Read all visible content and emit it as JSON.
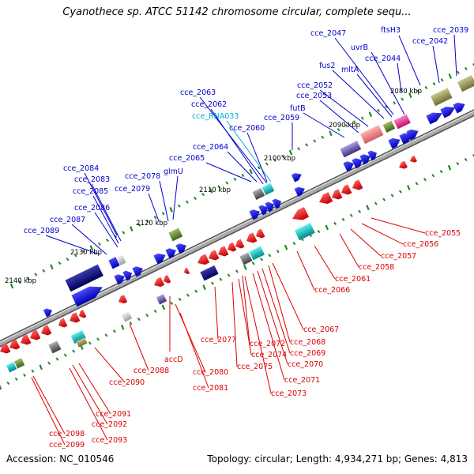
{
  "title": "Cyanothece sp. ATCC 51142 chromosome circular, complete sequ...",
  "footer": {
    "accession": "Accession: NC_010546",
    "summary": "Topology: circular; Length: 4,934,271 bp; Genes: 4,813"
  },
  "colors": {
    "forward_label": "#0000cc",
    "reverse_label": "#dd0000",
    "rna_label": "#00aadd",
    "forward_gene": "#0000ee",
    "reverse_gene": "#ee0000",
    "backbone": "#909090",
    "tick": "#228822"
  },
  "scale_labels": [
    {
      "text": "2080 kbp"
    },
    {
      "text": "2090 kbp"
    },
    {
      "text": "2100 kbp"
    },
    {
      "text": "2110 kbp"
    },
    {
      "text": "2120 kbp"
    },
    {
      "text": "2130 kbp"
    },
    {
      "text": "2140 kbp"
    }
  ],
  "forward_labels": [
    {
      "text": "cce_2039"
    },
    {
      "text": "ftsH3"
    },
    {
      "text": "cce_2042"
    },
    {
      "text": "cce_2047"
    },
    {
      "text": "uvrB"
    },
    {
      "text": "cce_2044"
    },
    {
      "text": "fus2"
    },
    {
      "text": "mltA"
    },
    {
      "text": "cce_2052"
    },
    {
      "text": "cce_2053"
    },
    {
      "text": "futB"
    },
    {
      "text": "cce_2063"
    },
    {
      "text": "cce_2062"
    },
    {
      "text": "cce_RNA033"
    },
    {
      "text": "cce_2060"
    },
    {
      "text": "cce_2059"
    },
    {
      "text": "cce_2064"
    },
    {
      "text": "cce_2065"
    },
    {
      "text": "cce_2084"
    },
    {
      "text": "cce_2078"
    },
    {
      "text": "glmU"
    },
    {
      "text": "cce_2083"
    },
    {
      "text": "cce_2085"
    },
    {
      "text": "cce_2079"
    },
    {
      "text": "cce_2086"
    },
    {
      "text": "cce_2087"
    },
    {
      "text": "cce_2089"
    }
  ],
  "reverse_labels": [
    {
      "text": "cce_2055"
    },
    {
      "text": "cce_2056"
    },
    {
      "text": "cce_2057"
    },
    {
      "text": "cce_2058"
    },
    {
      "text": "cce_2061"
    },
    {
      "text": "cce_2066"
    },
    {
      "text": "cce_2067"
    },
    {
      "text": "cce_2068"
    },
    {
      "text": "cce_2069"
    },
    {
      "text": "cce_2070"
    },
    {
      "text": "cce_2071"
    },
    {
      "text": "cce_2072"
    },
    {
      "text": "cce_2073"
    },
    {
      "text": "cce_2074"
    },
    {
      "text": "cce_2075"
    },
    {
      "text": "cce_2077"
    },
    {
      "text": "accD"
    },
    {
      "text": "cce_2080"
    },
    {
      "text": "cce_2081"
    },
    {
      "text": "cce_2088"
    },
    {
      "text": "cce_2090"
    },
    {
      "text": "cce_2091"
    },
    {
      "text": "cce_2092"
    },
    {
      "text": "cce_2093"
    },
    {
      "text": "cce_2098"
    },
    {
      "text": "cce_2099"
    }
  ]
}
